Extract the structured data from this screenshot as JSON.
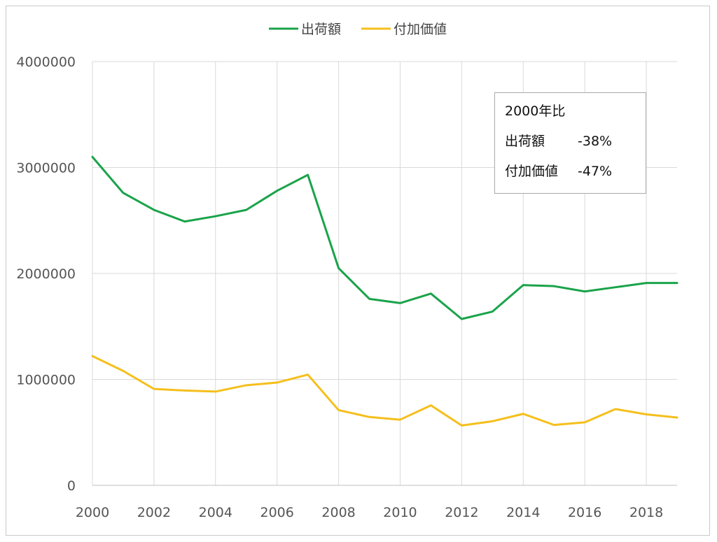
{
  "chart_data": {
    "type": "line",
    "title": "",
    "xlabel": "",
    "ylabel": "",
    "x": [
      2000,
      2001,
      2002,
      2003,
      2004,
      2005,
      2006,
      2007,
      2008,
      2009,
      2010,
      2011,
      2012,
      2013,
      2014,
      2015,
      2016,
      2017,
      2018,
      2019
    ],
    "x_ticks": [
      "2000",
      "2002",
      "2004",
      "2006",
      "2008",
      "2010",
      "2012",
      "2014",
      "2016",
      "2018"
    ],
    "y_ticks": [
      "0",
      "1000000",
      "2000000",
      "3000000",
      "4000000"
    ],
    "xlim": [
      2000,
      2019
    ],
    "ylim": [
      0,
      4000000
    ],
    "grid": true,
    "legend_position": "top-center",
    "series": [
      {
        "name": "出荷額",
        "color": "#1aa34a",
        "values": [
          3100000,
          2760000,
          2600000,
          2490000,
          2540000,
          2600000,
          2780000,
          2930000,
          2050000,
          1760000,
          1720000,
          1810000,
          1570000,
          1640000,
          1890000,
          1880000,
          1830000,
          1870000,
          1910000,
          1910000
        ]
      },
      {
        "name": "付加価値",
        "color": "#f5bf1c",
        "values": [
          1220000,
          1080000,
          910000,
          895000,
          885000,
          945000,
          970000,
          1045000,
          710000,
          645000,
          620000,
          755000,
          565000,
          605000,
          675000,
          570000,
          595000,
          720000,
          670000,
          640000
        ]
      }
    ],
    "annotation": {
      "title": "2000年比",
      "rows": [
        {
          "label": "出荷額",
          "value": "-38%"
        },
        {
          "label": "付加価値",
          "value": "-47%"
        }
      ]
    }
  }
}
